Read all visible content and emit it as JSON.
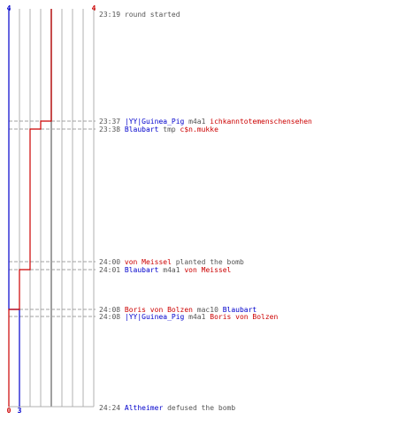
{
  "colors": {
    "team_a": "#0000cc",
    "team_b": "#cc0000",
    "neutral": "#555555",
    "grid": "#b0b0b0",
    "axis": "#808080",
    "dash": "#a0a0a0"
  },
  "chart_data": {
    "type": "line",
    "series": [
      {
        "team": "team_a",
        "start": 4,
        "end": 3,
        "steps": [
          {
            "time": "24:08",
            "value": 3
          }
        ]
      },
      {
        "team": "team_b",
        "start": 4,
        "end": 0,
        "steps": [
          {
            "time": "23:37",
            "value": 3
          },
          {
            "time": "23:38",
            "value": 2
          },
          {
            "time": "24:01",
            "value": 1
          },
          {
            "time": "24:08",
            "value": 0
          }
        ]
      }
    ],
    "x_range": [
      0,
      8
    ],
    "events": [
      {
        "time": "23:19",
        "parts": [
          {
            "text": "round started",
            "team": "neutral"
          }
        ]
      },
      {
        "time": "23:37",
        "parts": [
          {
            "text": "|YY|Guinea_Pig",
            "team": "team_a"
          },
          {
            "text": "m4a1",
            "team": "neutral"
          },
          {
            "text": "ichkanntotemenschensehen",
            "team": "team_b"
          }
        ]
      },
      {
        "time": "23:38",
        "parts": [
          {
            "text": "Blaubart",
            "team": "team_a"
          },
          {
            "text": "tmp",
            "team": "neutral"
          },
          {
            "text": "c$n.mukke",
            "team": "team_b"
          }
        ]
      },
      {
        "time": "24:00",
        "parts": [
          {
            "text": "von Meissel",
            "team": "team_b"
          },
          {
            "text": "planted the bomb",
            "team": "neutral"
          }
        ]
      },
      {
        "time": "24:01",
        "parts": [
          {
            "text": "Blaubart",
            "team": "team_a"
          },
          {
            "text": "m4a1",
            "team": "neutral"
          },
          {
            "text": "von Meissel",
            "team": "team_b"
          }
        ]
      },
      {
        "time": "24:08",
        "parts": [
          {
            "text": "Boris von Bolzen",
            "team": "team_b"
          },
          {
            "text": "mac10",
            "team": "neutral"
          },
          {
            "text": "Blaubart",
            "team": "team_a"
          }
        ]
      },
      {
        "time": "24:08",
        "parts": [
          {
            "text": "|YY|Guinea_Pig",
            "team": "team_a"
          },
          {
            "text": "m4a1",
            "team": "neutral"
          },
          {
            "text": "Boris von Bolzen",
            "team": "team_b"
          }
        ]
      },
      {
        "time": "24:24",
        "parts": [
          {
            "text": "Altheimer",
            "team": "team_a"
          },
          {
            "text": "defused the bomb",
            "team": "neutral"
          }
        ]
      }
    ],
    "count_labels": {
      "team_a_start": "4",
      "team_b_start": "4",
      "team_a_end": "3",
      "team_b_end": "0"
    }
  }
}
